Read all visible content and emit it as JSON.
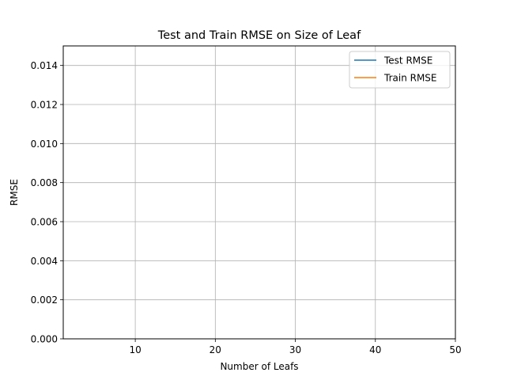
{
  "chart_data": {
    "type": "line",
    "title": "Test and Train RMSE on Size of Leaf",
    "xlabel": "Number of Leafs",
    "ylabel": "RMSE",
    "xlim": [
      1,
      50
    ],
    "ylim": [
      0,
      0.015
    ],
    "x_ticks": [
      {
        "value": 10,
        "label": "10"
      },
      {
        "value": 20,
        "label": "20"
      },
      {
        "value": 30,
        "label": "30"
      },
      {
        "value": 40,
        "label": "40"
      },
      {
        "value": 50,
        "label": "50"
      }
    ],
    "y_ticks": [
      {
        "value": 0.0,
        "label": "0.000"
      },
      {
        "value": 0.002,
        "label": "0.002"
      },
      {
        "value": 0.004,
        "label": "0.004"
      },
      {
        "value": 0.006,
        "label": "0.006"
      },
      {
        "value": 0.008,
        "label": "0.008"
      },
      {
        "value": 0.01,
        "label": "0.010"
      },
      {
        "value": 0.012,
        "label": "0.012"
      },
      {
        "value": 0.014,
        "label": "0.014"
      }
    ],
    "grid": true,
    "legend_position": "top-right",
    "series": [
      {
        "name": "Test RMSE",
        "color": "#1f77b4",
        "x": [],
        "values": []
      },
      {
        "name": "Train RMSE",
        "color": "#ff7f0e",
        "x": [],
        "values": []
      }
    ]
  }
}
